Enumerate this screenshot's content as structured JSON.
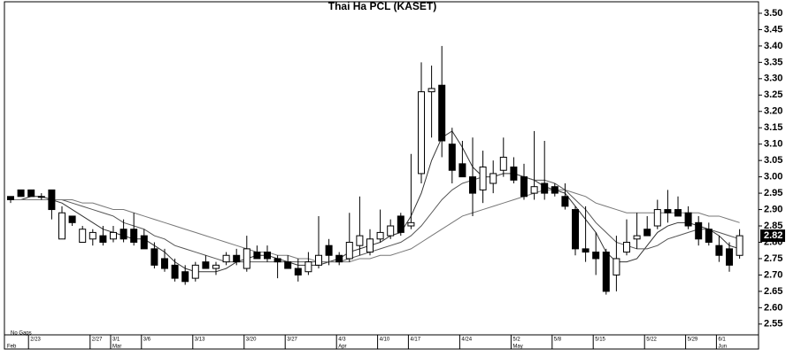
{
  "chart_data": {
    "type": "candlestick",
    "title": "Thai Ha PCL (KASET)",
    "note": "No Gaps",
    "last_price": {
      "value": 2.82,
      "label": "2.82"
    },
    "categories": [
      null,
      null,
      "2/23",
      null,
      null,
      null,
      null,
      null,
      "2/27",
      null,
      "3/1",
      null,
      null,
      "3/6",
      null,
      null,
      null,
      null,
      "3/13",
      null,
      null,
      null,
      null,
      "3/20",
      null,
      null,
      null,
      "3/27",
      null,
      null,
      null,
      null,
      "4/3",
      null,
      null,
      null,
      "4/10",
      null,
      null,
      "4/17",
      null,
      null,
      null,
      null,
      "4/24",
      null,
      null,
      null,
      null,
      "5/2",
      null,
      null,
      null,
      "5/8",
      null,
      null,
      null,
      "5/15",
      null,
      null,
      null,
      null,
      "5/22",
      null,
      null,
      null,
      "5/29",
      null,
      null,
      "6/1",
      null,
      null
    ],
    "months": [
      {
        "label": "Feb",
        "index": 0
      },
      {
        "label": "Mar",
        "index": 10
      },
      {
        "label": "Apr",
        "index": 32
      },
      {
        "label": "May",
        "index": 49
      },
      {
        "label": "Jun",
        "index": 69
      }
    ],
    "open": [
      2.94,
      2.96,
      2.96,
      2.94,
      2.96,
      2.81,
      2.88,
      2.8,
      2.81,
      2.82,
      2.81,
      2.84,
      2.84,
      2.82,
      2.78,
      2.75,
      2.73,
      2.71,
      2.69,
      2.74,
      2.72,
      2.74,
      2.76,
      2.72,
      2.77,
      2.77,
      2.75,
      2.74,
      2.72,
      2.71,
      2.73,
      2.79,
      2.76,
      2.75,
      2.79,
      2.77,
      2.81,
      2.82,
      2.88,
      2.85,
      3.01,
      3.26,
      3.28,
      3.1,
      3.04,
      3.0,
      2.96,
      2.98,
      3.02,
      3.03,
      3.0,
      2.95,
      2.98,
      2.97,
      2.94,
      2.9,
      2.78,
      2.77,
      2.77,
      2.7,
      2.77,
      2.81,
      2.84,
      2.85,
      2.9,
      2.9,
      2.89,
      2.86,
      2.84,
      2.79,
      2.78,
      2.76
    ],
    "high": [
      2.94,
      2.96,
      2.96,
      2.95,
      2.96,
      2.91,
      2.88,
      2.85,
      2.84,
      2.85,
      2.85,
      2.87,
      2.89,
      2.84,
      2.8,
      2.78,
      2.75,
      2.73,
      2.74,
      2.76,
      2.74,
      2.77,
      2.78,
      2.82,
      2.79,
      2.79,
      2.76,
      2.76,
      2.75,
      2.77,
      2.88,
      2.81,
      2.77,
      2.89,
      2.94,
      2.84,
      2.9,
      2.87,
      2.89,
      3.07,
      3.35,
      3.34,
      3.4,
      3.15,
      3.11,
      3.12,
      3.08,
      3.05,
      3.12,
      3.06,
      3.04,
      3.14,
      3.11,
      2.98,
      2.98,
      2.91,
      2.91,
      2.83,
      2.78,
      2.82,
      2.87,
      2.89,
      2.88,
      2.93,
      2.96,
      2.94,
      2.91,
      2.88,
      2.86,
      2.82,
      2.8,
      2.84
    ],
    "low": [
      2.92,
      2.94,
      2.94,
      2.93,
      2.87,
      2.81,
      2.85,
      2.8,
      2.79,
      2.79,
      2.8,
      2.8,
      2.79,
      2.78,
      2.72,
      2.71,
      2.68,
      2.67,
      2.68,
      2.72,
      2.7,
      2.73,
      2.73,
      2.71,
      2.75,
      2.74,
      2.69,
      2.72,
      2.68,
      2.7,
      2.72,
      2.73,
      2.73,
      2.74,
      2.76,
      2.76,
      2.8,
      2.81,
      2.82,
      2.84,
      2.98,
      3.12,
      3.06,
      2.98,
      3.0,
      2.88,
      2.92,
      2.95,
      3.0,
      2.98,
      2.93,
      2.93,
      2.93,
      2.94,
      2.9,
      2.76,
      2.74,
      2.7,
      2.64,
      2.65,
      2.76,
      2.78,
      2.82,
      2.84,
      2.86,
      2.88,
      2.84,
      2.79,
      2.79,
      2.74,
      2.71,
      2.75
    ],
    "close": [
      2.93,
      2.94,
      2.94,
      2.94,
      2.9,
      2.89,
      2.86,
      2.84,
      2.83,
      2.8,
      2.83,
      2.81,
      2.8,
      2.78,
      2.73,
      2.72,
      2.69,
      2.68,
      2.73,
      2.72,
      2.73,
      2.76,
      2.74,
      2.78,
      2.75,
      2.75,
      2.74,
      2.72,
      2.7,
      2.74,
      2.76,
      2.76,
      2.74,
      2.8,
      2.82,
      2.81,
      2.83,
      2.85,
      2.83,
      2.86,
      3.26,
      3.27,
      3.11,
      3.02,
      3.0,
      2.95,
      3.03,
      3.01,
      3.06,
      2.99,
      2.94,
      2.97,
      2.95,
      2.95,
      2.91,
      2.78,
      2.77,
      2.75,
      2.65,
      2.75,
      2.8,
      2.82,
      2.82,
      2.9,
      2.89,
      2.88,
      2.85,
      2.81,
      2.8,
      2.76,
      2.73,
      2.82
    ],
    "series": [
      {
        "color": "#333333",
        "values": [
          2.93,
          2.93,
          2.94,
          2.94,
          2.93,
          2.92,
          2.9,
          2.88,
          2.86,
          2.84,
          2.83,
          2.82,
          2.81,
          2.81,
          2.79,
          2.77,
          2.74,
          2.72,
          2.71,
          2.71,
          2.71,
          2.72,
          2.74,
          2.75,
          2.76,
          2.76,
          2.75,
          2.74,
          2.73,
          2.73,
          2.73,
          2.74,
          2.75,
          2.77,
          2.78,
          2.79,
          2.8,
          2.82,
          2.83,
          2.88,
          2.95,
          3.05,
          3.12,
          3.14,
          3.09,
          3.03,
          3.0,
          3.0,
          3.01,
          3.01,
          3.0,
          2.99,
          2.97,
          2.96,
          2.95,
          2.91,
          2.87,
          2.83,
          2.77,
          2.74,
          2.74,
          2.75,
          2.79,
          2.83,
          2.85,
          2.86,
          2.86,
          2.85,
          2.84,
          2.82,
          2.79,
          2.78
        ]
      },
      {
        "color": "#555555",
        "values": [
          2.93,
          2.93,
          2.93,
          2.93,
          2.93,
          2.93,
          2.92,
          2.91,
          2.9,
          2.89,
          2.88,
          2.86,
          2.85,
          2.84,
          2.82,
          2.81,
          2.79,
          2.78,
          2.77,
          2.76,
          2.75,
          2.74,
          2.74,
          2.74,
          2.74,
          2.74,
          2.74,
          2.74,
          2.74,
          2.74,
          2.74,
          2.74,
          2.74,
          2.75,
          2.76,
          2.77,
          2.78,
          2.79,
          2.8,
          2.82,
          2.85,
          2.89,
          2.93,
          2.96,
          2.98,
          2.99,
          3.0,
          3.0,
          3.01,
          3.01,
          3.0,
          2.99,
          2.99,
          2.98,
          2.96,
          2.93,
          2.9,
          2.86,
          2.83,
          2.8,
          2.79,
          2.78,
          2.78,
          2.79,
          2.81,
          2.82,
          2.83,
          2.84,
          2.84,
          2.83,
          2.82,
          2.81
        ]
      },
      {
        "color": "#777777",
        "values": [
          2.93,
          2.93,
          2.93,
          2.93,
          2.93,
          2.93,
          2.93,
          2.92,
          2.92,
          2.91,
          2.9,
          2.9,
          2.89,
          2.88,
          2.87,
          2.86,
          2.85,
          2.84,
          2.83,
          2.82,
          2.81,
          2.8,
          2.79,
          2.78,
          2.77,
          2.77,
          2.76,
          2.76,
          2.75,
          2.75,
          2.74,
          2.74,
          2.74,
          2.74,
          2.75,
          2.75,
          2.76,
          2.76,
          2.77,
          2.78,
          2.8,
          2.82,
          2.84,
          2.86,
          2.88,
          2.89,
          2.9,
          2.91,
          2.92,
          2.93,
          2.94,
          2.95,
          2.96,
          2.96,
          2.96,
          2.95,
          2.94,
          2.92,
          2.91,
          2.9,
          2.89,
          2.89,
          2.89,
          2.89,
          2.89,
          2.89,
          2.89,
          2.89,
          2.88,
          2.88,
          2.87,
          2.86
        ]
      }
    ],
    "ylim": [
      2.517,
      3.527
    ],
    "yticks": [
      2.55,
      {
        "value": 2.6,
        "label": "2.60"
      },
      2.65,
      {
        "value": 2.7,
        "label": "2.70"
      },
      2.75,
      {
        "value": 2.8,
        "label": "2.80"
      },
      2.85,
      {
        "value": 2.9,
        "label": "2.90"
      },
      2.95,
      {
        "value": 3.0,
        "label": "3.00"
      },
      3.05,
      {
        "value": 3.1,
        "label": "3.10"
      },
      3.15,
      {
        "value": 3.2,
        "label": "3.20"
      },
      3.25,
      {
        "value": 3.3,
        "label": "3.30"
      },
      3.35,
      {
        "value": 3.4,
        "label": "3.40"
      },
      3.45,
      {
        "value": 3.5,
        "label": "3.50"
      }
    ],
    "up_color": "#ffffff",
    "down_color": "#000000"
  }
}
